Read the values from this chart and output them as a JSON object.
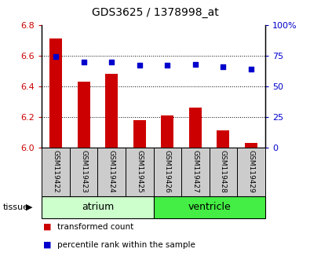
{
  "title": "GDS3625 / 1378998_at",
  "samples": [
    "GSM119422",
    "GSM119423",
    "GSM119424",
    "GSM119425",
    "GSM119426",
    "GSM119427",
    "GSM119428",
    "GSM119429"
  ],
  "transformed_count": [
    6.71,
    6.43,
    6.48,
    6.18,
    6.21,
    6.26,
    6.11,
    6.03
  ],
  "percentile_rank": [
    74,
    70,
    70,
    67,
    67,
    68,
    66,
    64
  ],
  "ylim_left": [
    6.0,
    6.8
  ],
  "yticks_left": [
    6.0,
    6.2,
    6.4,
    6.6,
    6.8
  ],
  "ylim_right": [
    0,
    100
  ],
  "yticks_right": [
    0,
    25,
    50,
    75,
    100
  ],
  "yticklabels_right": [
    "0",
    "25",
    "50",
    "75",
    "100%"
  ],
  "bar_color": "#cc0000",
  "dot_color": "#0000cc",
  "bar_bottom": 6.0,
  "tissue_groups": [
    {
      "label": "atrium",
      "start": 0,
      "end": 3,
      "color": "#ccffcc"
    },
    {
      "label": "ventricle",
      "start": 4,
      "end": 7,
      "color": "#44ee44"
    }
  ],
  "grid_color": "#000000",
  "tissue_label": "tissue",
  "legend_items": [
    {
      "label": "transformed count",
      "color": "#cc0000",
      "marker": "s"
    },
    {
      "label": "percentile rank within the sample",
      "color": "#0000cc",
      "marker": "s"
    }
  ],
  "sample_label_bg": "#cccccc",
  "bar_width": 0.45
}
